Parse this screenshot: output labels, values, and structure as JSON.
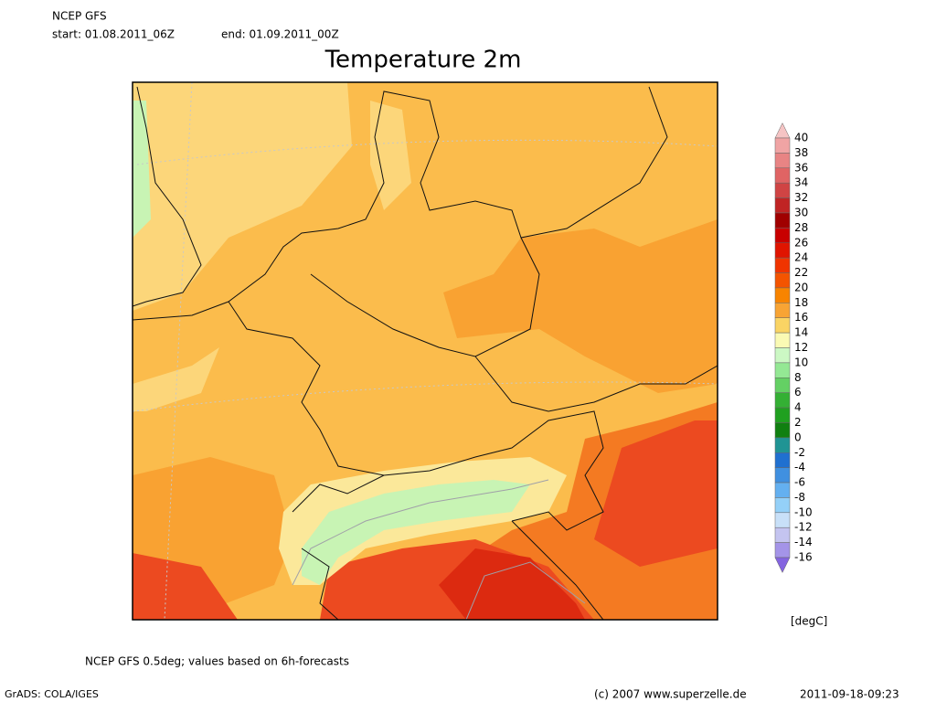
{
  "header": {
    "model": "NCEP GFS",
    "start": "start: 01.08.2011_06Z",
    "end": "end: 01.09.2011_00Z"
  },
  "title": "Temperature 2m",
  "legend": {
    "ticks": [
      40,
      38,
      36,
      34,
      32,
      30,
      28,
      26,
      24,
      22,
      20,
      18,
      16,
      14,
      12,
      10,
      8,
      6,
      4,
      2,
      0,
      -2,
      -4,
      -6,
      -8,
      -10,
      -12,
      -14,
      -16
    ],
    "colors": [
      "#f5c4c4",
      "#f0a4a4",
      "#e88484",
      "#e06464",
      "#d04444",
      "#c02424",
      "#a00000",
      "#c80000",
      "#e01400",
      "#f03400",
      "#f45400",
      "#f88400",
      "#f8a434",
      "#fad464",
      "#fafab4",
      "#ccf8c4",
      "#94e894",
      "#64d064",
      "#34b034",
      "#20a020",
      "#108010",
      "#209494",
      "#2070d0",
      "#4090e0",
      "#64b0f0",
      "#94d0f8",
      "#c8e0f8",
      "#c4c4f0",
      "#a494e8",
      "#8464e0"
    ],
    "unit": "[degC]"
  },
  "footer": {
    "note": "NCEP GFS 0.5deg; values based on 6h-forecasts",
    "software": "GrADS: COLA/IGES",
    "copyright": "(c) 2007 www.superzelle.de",
    "timestamp": "2011-09-18-09:23"
  }
}
